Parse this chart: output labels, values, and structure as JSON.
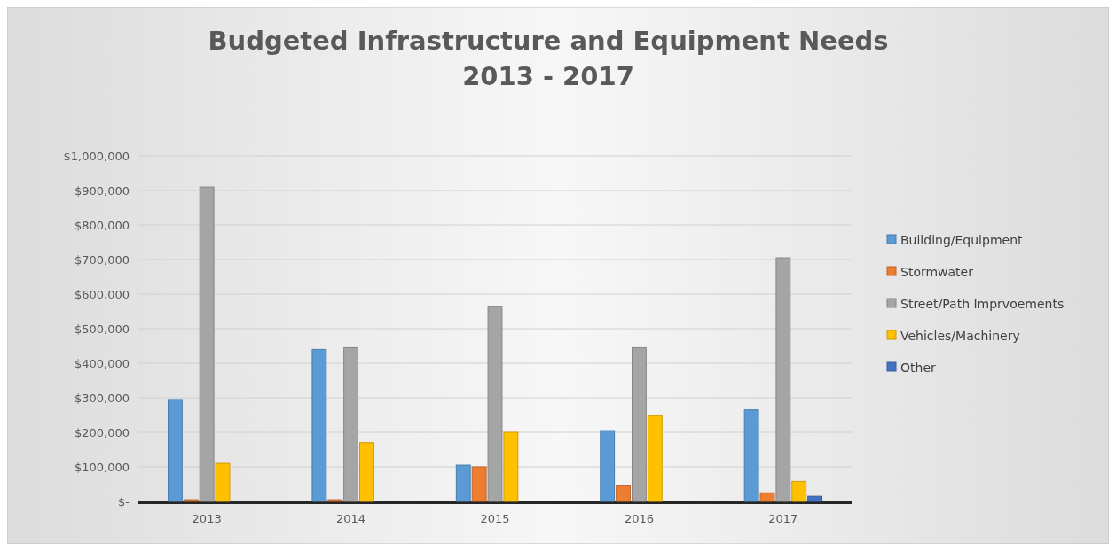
{
  "chart_data": {
    "type": "bar",
    "title": "Budgeted Infrastructure and Equipment Needs",
    "subtitle": "2013 - 2017",
    "categories": [
      "2013",
      "2014",
      "2015",
      "2016",
      "2017"
    ],
    "series": [
      {
        "name": "Building/Equipment",
        "color": "#5b9bd5",
        "values": [
          295000,
          440000,
          105000,
          205000,
          265000
        ]
      },
      {
        "name": "Stormwater",
        "color": "#ed7d31",
        "values": [
          5000,
          5000,
          100000,
          45000,
          25000
        ]
      },
      {
        "name": "Street/Path Imprvoements",
        "color": "#a5a5a5",
        "values": [
          910000,
          445000,
          565000,
          445000,
          705000
        ]
      },
      {
        "name": "Vehicles/Machinery",
        "color": "#ffc000",
        "values": [
          110000,
          170000,
          200000,
          248000,
          58000
        ]
      },
      {
        "name": "Other",
        "color": "#4472c4",
        "values": [
          0,
          0,
          0,
          0,
          15000
        ]
      }
    ],
    "ylim": [
      0,
      1000000
    ],
    "yticks": [
      {
        "value": 0,
        "label": "$-"
      },
      {
        "value": 100000,
        "label": "$100,000"
      },
      {
        "value": 200000,
        "label": "$200,000"
      },
      {
        "value": 300000,
        "label": "$300,000"
      },
      {
        "value": 400000,
        "label": "$400,000"
      },
      {
        "value": 500000,
        "label": "$500,000"
      },
      {
        "value": 600000,
        "label": "$600,000"
      },
      {
        "value": 700000,
        "label": "$700,000"
      },
      {
        "value": 800000,
        "label": "$800,000"
      },
      {
        "value": 900000,
        "label": "$900,000"
      },
      {
        "value": 1000000,
        "label": "$1,000,000"
      }
    ],
    "grid": "y",
    "legend": "right"
  }
}
